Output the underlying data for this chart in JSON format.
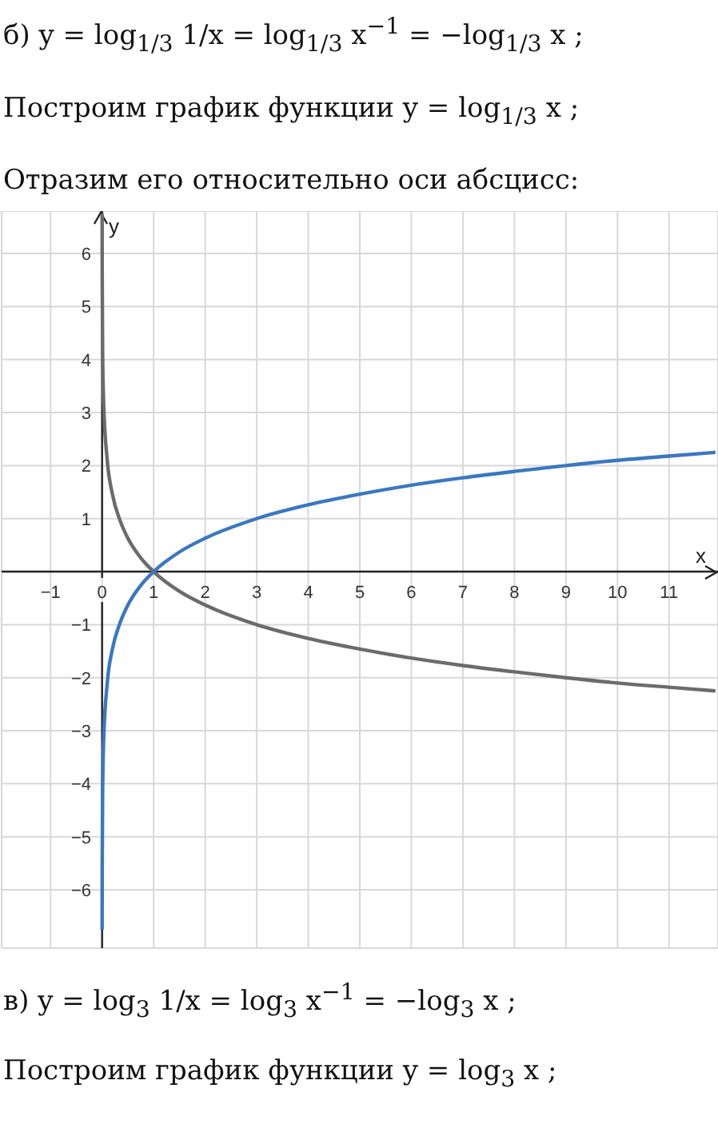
{
  "chart_data": {
    "type": "line",
    "title": "б) y = log$_{1/3}$ 1/x = log$_{1/3}$ x$^{−1}$ = −log$_{1/3}$ x ;",
    "subtitle": "Построим график функции y = log$_{1/3}$ x ;",
    "annotations": [
      "Отразим его относительно оси абсцисс:",
      "в) y = log$_{3}$ 1/x = log$_{3}$ x$^{−1}$ = −log$_{3}$ x ;",
      "Построим график функции y = log$_{3}$ x ;"
    ],
    "xlabel": "x",
    "ylabel": "y",
    "x": [
      0.0006,
      0.002,
      0.01,
      0.03,
      0.1,
      0.2,
      0.35,
      0.5,
      0.75,
      1,
      1.5,
      2,
      3,
      4,
      5,
      6,
      7,
      8,
      9,
      10,
      11,
      11.9
    ],
    "series": [
      {
        "color": "#6b6b6b",
        "values": [
          6.75,
          5.66,
          4.19,
          3.19,
          2.1,
          1.46,
          0.96,
          0.63,
          0.26,
          0,
          -0.37,
          -0.63,
          -1,
          -1.26,
          -1.46,
          -1.63,
          -1.77,
          -1.89,
          -2,
          -2.1,
          -2.18,
          -2.25
        ]
      },
      {
        "color": "#3a78c0",
        "values": [
          -6.75,
          -5.66,
          -4.19,
          -3.19,
          -2.1,
          -1.46,
          -0.96,
          -0.63,
          -0.26,
          0,
          0.37,
          0.63,
          1,
          1.26,
          1.46,
          1.63,
          1.77,
          1.89,
          2,
          2.1,
          2.18,
          2.25
        ]
      }
    ],
    "xlim": [
      -1.95,
      11.95
    ],
    "ylim": [
      -7.1,
      6.8
    ],
    "xticks": [
      -1,
      0,
      1,
      2,
      3,
      4,
      5,
      6,
      7,
      8,
      9,
      10,
      11
    ],
    "yticks": [
      -6,
      -5,
      -4,
      -3,
      -2,
      -1,
      1,
      2,
      3,
      4,
      5,
      6
    ],
    "grid": true
  }
}
